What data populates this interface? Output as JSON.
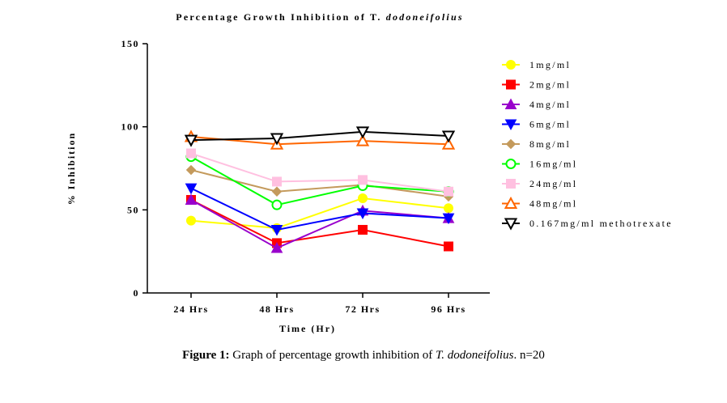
{
  "chart_data": {
    "type": "line",
    "title_prefix": "Percentage Growth Inhibition of T. ",
    "title_italic": "dodoneifolius",
    "xlabel": "Time (Hr)",
    "ylabel": "% Inhibition",
    "categories": [
      "24 Hrs",
      "48 Hrs",
      "72 Hrs",
      "96 Hrs"
    ],
    "ylim": [
      0,
      150
    ],
    "yticks": [
      0,
      50,
      100,
      150
    ],
    "grid": false,
    "legend_position": "right",
    "series": [
      {
        "name": "1mg/ml",
        "color": "#ffff00",
        "marker": "circle",
        "values": [
          43.5,
          39,
          57,
          51
        ]
      },
      {
        "name": "2mg/ml",
        "color": "#ff0000",
        "marker": "square",
        "values": [
          56,
          30,
          38,
          28
        ]
      },
      {
        "name": "4mg/ml",
        "color": "#9900cc",
        "marker": "triangle-up",
        "values": [
          56,
          27,
          49.5,
          45
        ]
      },
      {
        "name": "6mg/ml",
        "color": "#0000ff",
        "marker": "triangle-down",
        "values": [
          63,
          38,
          48,
          45
        ]
      },
      {
        "name": "8mg/ml",
        "color": "#c49a5c",
        "marker": "diamond",
        "values": [
          74,
          61,
          65,
          58
        ]
      },
      {
        "name": "16mg/ml",
        "color": "#00ff00",
        "marker": "circle-open",
        "values": [
          82,
          53,
          64.5,
          61
        ]
      },
      {
        "name": "24mg/ml",
        "color": "#ffc0e0",
        "marker": "square",
        "values": [
          84,
          67,
          68,
          61
        ]
      },
      {
        "name": "48mg/ml",
        "color": "#ff6600",
        "marker": "triangle-up-open",
        "values": [
          94,
          89.5,
          91.5,
          89.5
        ]
      },
      {
        "name": "0.167mg/ml methotrexate",
        "color": "#000000",
        "marker": "triangle-down-open",
        "values": [
          92,
          93,
          97,
          94.5
        ]
      }
    ]
  },
  "caption": {
    "label": "Figure 1:",
    "text_before": " Graph of percentage growth inhibition of ",
    "italic": "T. dodoneifolius",
    "text_after": ". n=20"
  }
}
